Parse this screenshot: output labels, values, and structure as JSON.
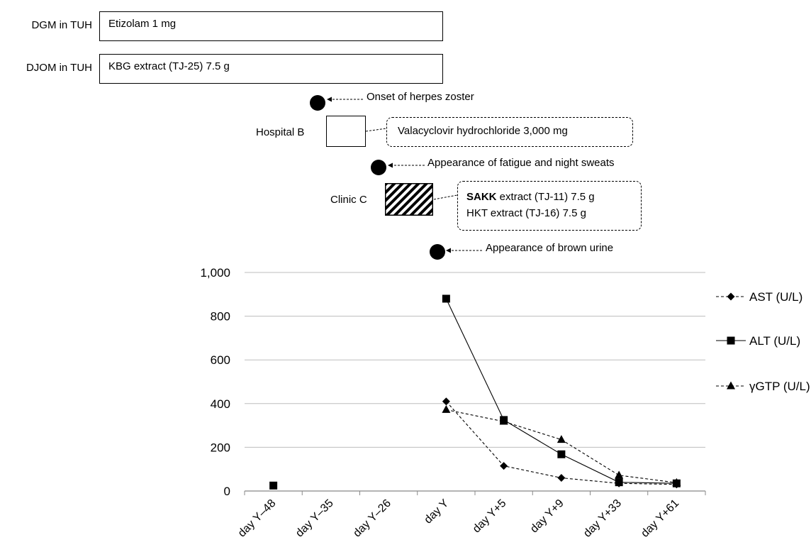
{
  "timeline": {
    "dgm_label": "DGM in TUH",
    "dgm_drug": "Etizolam 1 mg",
    "djom_label": "DJOM in TUH",
    "djom_drug": "KBG extract (TJ-25) 7.5 g",
    "event_herpes": "Onset of herpes zoster",
    "hospital_b_label": "Hospital B",
    "hospital_b_drug": "Valacyclovir hydrochloride 3,000 mg",
    "event_fatigue": "Appearance of fatigue and night sweats",
    "clinic_c_label": "Clinic C",
    "clinic_c_drug1_bold": "SAKK",
    "clinic_c_drug1_rest": " extract (TJ-11) 7.5 g",
    "clinic_c_drug2": "HKT extract (TJ-16) 7.5 g",
    "event_brown_urine": "Appearance of brown urine"
  },
  "chart_data": {
    "type": "line",
    "categories": [
      "day Y–48",
      "day Y–35",
      "day Y–26",
      "day Y",
      "day Y+5",
      "day Y+9",
      "day Y+33",
      "day Y+61"
    ],
    "y_ticks": [
      "0",
      "200",
      "400",
      "600",
      "800",
      "1,000"
    ],
    "ylim": [
      0,
      1000
    ],
    "grid": true,
    "legend_position": "right",
    "series": [
      {
        "name": "AST (U/L)",
        "marker": "diamond",
        "dashed": true,
        "values": [
          null,
          null,
          null,
          410,
          115,
          60,
          35,
          30
        ]
      },
      {
        "name": "ALT (U/L)",
        "marker": "square",
        "dashed": false,
        "values": [
          25,
          null,
          null,
          880,
          325,
          168,
          40,
          35
        ]
      },
      {
        "name": "γGTP (U/L)",
        "marker": "triangle",
        "dashed": true,
        "values": [
          null,
          null,
          null,
          372,
          318,
          235,
          72,
          38
        ]
      }
    ]
  }
}
